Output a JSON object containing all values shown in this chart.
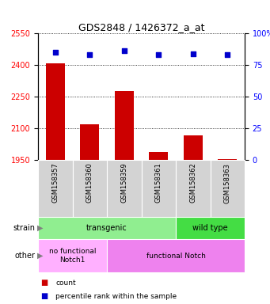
{
  "title": "GDS2848 / 1426372_a_at",
  "samples": [
    "GSM158357",
    "GSM158360",
    "GSM158359",
    "GSM158361",
    "GSM158362",
    "GSM158363"
  ],
  "counts": [
    2408,
    2120,
    2275,
    1988,
    2065,
    1952
  ],
  "percentiles": [
    85,
    83,
    86,
    83,
    84,
    83
  ],
  "ylim_left": [
    1950,
    2550
  ],
  "ylim_right": [
    0,
    100
  ],
  "yticks_left": [
    1950,
    2100,
    2250,
    2400,
    2550
  ],
  "yticks_right": [
    0,
    25,
    50,
    75,
    100
  ],
  "bar_color": "#CC0000",
  "square_color": "#0000CC",
  "bar_width": 0.55,
  "strain_labels": [
    {
      "text": "transgenic",
      "cols": [
        0,
        1,
        2,
        3
      ],
      "color": "#90EE90"
    },
    {
      "text": "wild type",
      "cols": [
        4,
        5
      ],
      "color": "#44DD44"
    }
  ],
  "other_labels": [
    {
      "text": "no functional\nNotch1",
      "cols": [
        0,
        1
      ],
      "color": "#FFB0FF"
    },
    {
      "text": "functional Notch",
      "cols": [
        2,
        3,
        4,
        5
      ],
      "color": "#EE82EE"
    }
  ],
  "legend_count_color": "#CC0000",
  "legend_pct_color": "#0000CC",
  "background_color": "#FFFFFF",
  "xlabel_gray": "#CCCCCC",
  "grid_color": "black"
}
